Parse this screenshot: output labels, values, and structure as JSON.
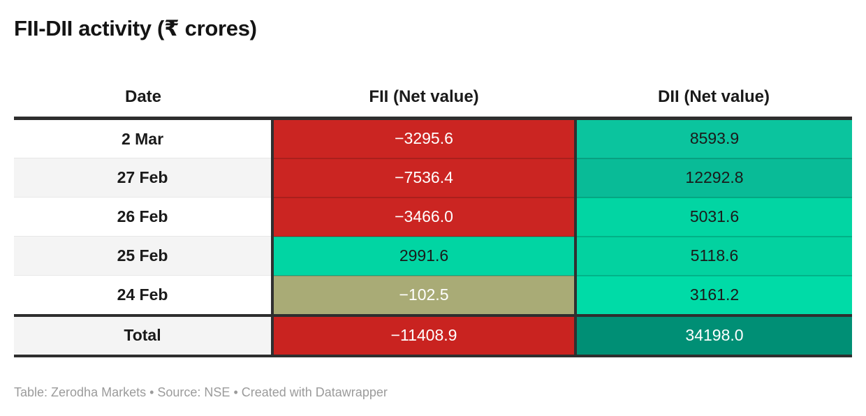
{
  "title": "FII-DII activity (₹ crores)",
  "footer": "Table: Zerodha Markets • Source: NSE • Created with Datawrapper",
  "accent_colors": {
    "negative_red": "#cb2522",
    "positive_green": "#01d5a3",
    "near_zero_khaki": "#a9ab76",
    "total_teal": "#008f75",
    "rule_dark": "#2e2e2e"
  },
  "table": {
    "columns": [
      {
        "label": "Date"
      },
      {
        "label": "FII (Net value)"
      },
      {
        "label": "DII (Net value)"
      }
    ],
    "rows": [
      {
        "date": "2 Mar",
        "fii": {
          "text": "−3295.6",
          "bg": "#cb2522",
          "fg": "#ffffff"
        },
        "dii": {
          "text": "8593.9",
          "bg": "#0bc49e",
          "fg": "#1a1a1a"
        }
      },
      {
        "date": "27 Feb",
        "fii": {
          "text": "−7536.4",
          "bg": "#cb2522",
          "fg": "#ffffff"
        },
        "dii": {
          "text": "12292.8",
          "bg": "#09bb97",
          "fg": "#1a1a1a"
        }
      },
      {
        "date": "26 Feb",
        "fii": {
          "text": "−3466.0",
          "bg": "#cb2522",
          "fg": "#ffffff"
        },
        "dii": {
          "text": "5031.6",
          "bg": "#02d5a3",
          "fg": "#1a1a1a"
        }
      },
      {
        "date": "25 Feb",
        "fii": {
          "text": "2991.6",
          "bg": "#01d5a3",
          "fg": "#1a1a1a"
        },
        "dii": {
          "text": "5118.6",
          "bg": "#03d2a0",
          "fg": "#1a1a1a"
        }
      },
      {
        "date": "24 Feb",
        "fii": {
          "text": "−102.5",
          "bg": "#a9ab76",
          "fg": "#ffffff"
        },
        "dii": {
          "text": "3161.2",
          "bg": "#00dba7",
          "fg": "#1a1a1a"
        }
      },
      {
        "date": "Total",
        "fii": {
          "text": "−11408.9",
          "bg": "#c92320",
          "fg": "#ffffff"
        },
        "dii": {
          "text": "34198.0",
          "bg": "#008f75",
          "fg": "#ffffff"
        }
      }
    ]
  },
  "chart_data": {
    "type": "table",
    "title": "FII-DII activity (₹ crores)",
    "categories": [
      "2 Mar",
      "27 Feb",
      "26 Feb",
      "25 Feb",
      "24 Feb"
    ],
    "series": [
      {
        "name": "FII (Net value)",
        "values": [
          -3295.6,
          -7536.4,
          -3466.0,
          2991.6,
          -102.5
        ],
        "total": -11408.9
      },
      {
        "name": "DII (Net value)",
        "values": [
          8593.9,
          12292.8,
          5031.6,
          5118.6,
          3161.2
        ],
        "total": 34198.0
      }
    ],
    "color_encoding": "cell background heatmap: red = negative, green = positive, darker teal = larger positive, khaki = near zero",
    "source": "NSE",
    "table_credit": "Zerodha Markets",
    "tool": "Datawrapper"
  }
}
